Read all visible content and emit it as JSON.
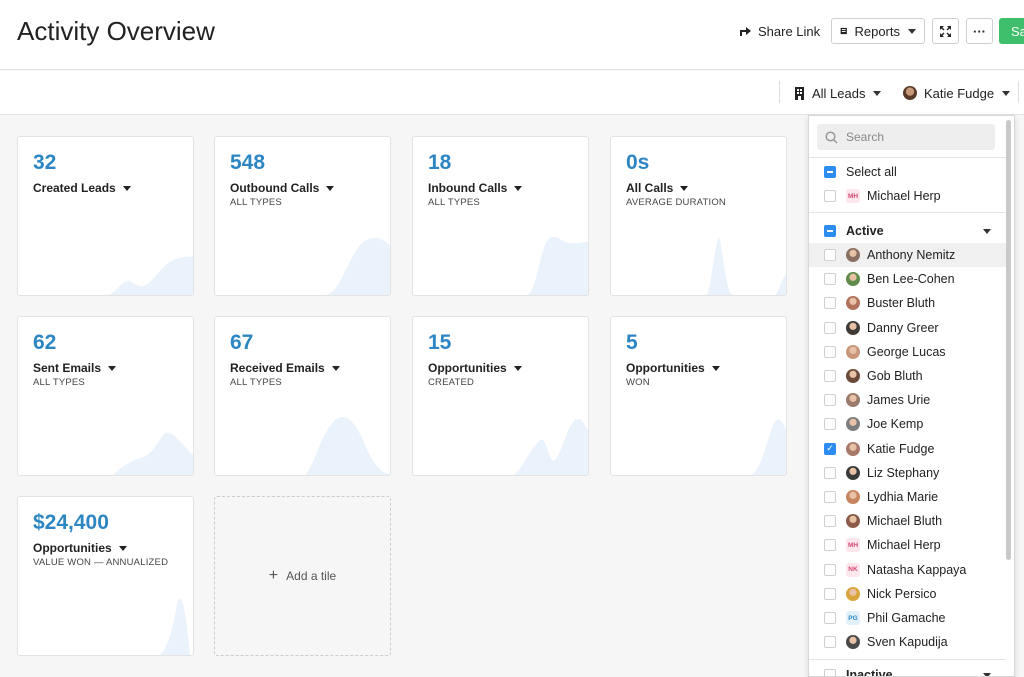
{
  "header": {
    "title": "Activity Overview",
    "share_link": "Share Link",
    "reports": "Reports",
    "save": "Sa"
  },
  "filters": {
    "leads": "All Leads",
    "user": "Katie Fudge"
  },
  "tiles": [
    {
      "value": "32",
      "label": "Created Leads",
      "sub": ""
    },
    {
      "value": "548",
      "label": "Outbound Calls",
      "sub": "ALL TYPES"
    },
    {
      "value": "18",
      "label": "Inbound Calls",
      "sub": "ALL TYPES"
    },
    {
      "value": "0s",
      "label": "All Calls",
      "sub": "AVERAGE DURATION"
    },
    {
      "value": "62",
      "label": "Sent Emails",
      "sub": "ALL TYPES"
    },
    {
      "value": "67",
      "label": "Received Emails",
      "sub": "ALL TYPES"
    },
    {
      "value": "15",
      "label": "Opportunities",
      "sub": "CREATED"
    },
    {
      "value": "5",
      "label": "Opportunities",
      "sub": "WON"
    },
    {
      "value": "$24,400",
      "label": "Opportunities",
      "sub": "VALUE WON — ANNUALIZED"
    }
  ],
  "add_tile": "Add a tile",
  "dropdown": {
    "search_placeholder": "Search",
    "select_all": "Select all",
    "pinned": "Michael Herp",
    "active_label": "Active",
    "inactive_label": "Inactive",
    "users": [
      {
        "name": "Anthony Nemitz",
        "checked": false
      },
      {
        "name": "Ben Lee-Cohen",
        "checked": false
      },
      {
        "name": "Buster Bluth",
        "checked": false
      },
      {
        "name": "Danny Greer",
        "checked": false
      },
      {
        "name": "George Lucas",
        "checked": false
      },
      {
        "name": "Gob Bluth",
        "checked": false
      },
      {
        "name": "James Urie",
        "checked": false
      },
      {
        "name": "Joe Kemp",
        "checked": false
      },
      {
        "name": "Katie Fudge",
        "checked": true
      },
      {
        "name": "Liz Stephany",
        "checked": false
      },
      {
        "name": "Lydhia Marie",
        "checked": false
      },
      {
        "name": "Michael Bluth",
        "checked": false
      },
      {
        "name": "Michael Herp",
        "checked": false
      },
      {
        "name": "Natasha Kappaya",
        "checked": false
      },
      {
        "name": "Nick Persico",
        "checked": false
      },
      {
        "name": "Phil Gamache",
        "checked": false
      },
      {
        "name": "Sven Kapudija",
        "checked": false
      }
    ],
    "initials": {
      "MH": "MH",
      "NK": "NK",
      "PG": "PG"
    }
  },
  "colors": {
    "accent": "#2d86c4",
    "save_green": "#3fbf6b",
    "checkbox_blue": "#2d8cf0",
    "sparkline": "#eaf3fb"
  }
}
